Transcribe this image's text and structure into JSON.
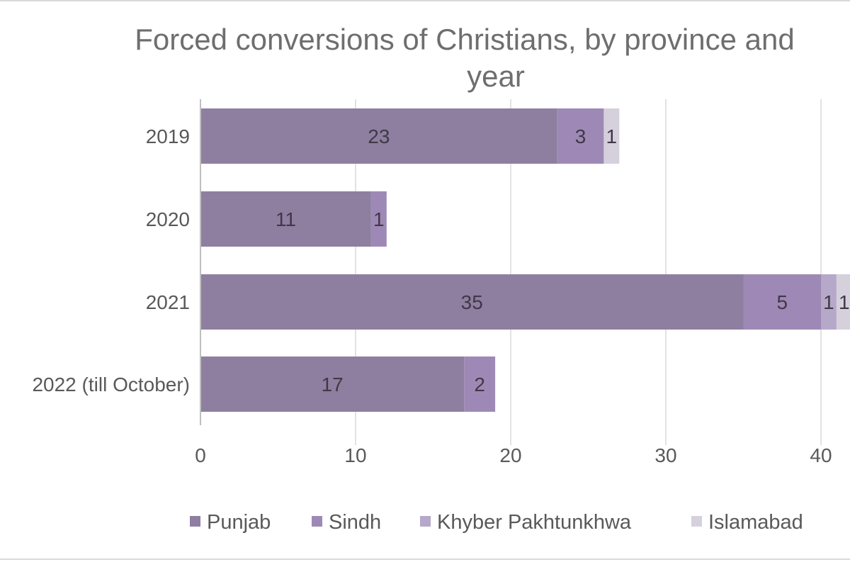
{
  "chart_data": {
    "type": "bar",
    "orientation": "horizontal",
    "stacked": true,
    "title": "Forced conversions of Christians, by province and year",
    "title_lines": [
      "Forced conversions of Christians, by province and",
      "year"
    ],
    "xlabel": "",
    "ylabel": "",
    "categories": [
      "2019",
      "2020",
      "2021",
      "2022 (till October)"
    ],
    "series": [
      {
        "name": "Punjab",
        "color": "#8e7fa0",
        "values": [
          23,
          11,
          35,
          17
        ]
      },
      {
        "name": "Sindh",
        "color": "#9e89b6",
        "values": [
          3,
          1,
          5,
          2
        ]
      },
      {
        "name": "Khyber Pakhtunkhwa",
        "color": "#b6a8c9",
        "values": [
          0,
          0,
          1,
          0
        ]
      },
      {
        "name": "Islamabad",
        "color": "#d5d0dc",
        "values": [
          1,
          0,
          1,
          0
        ]
      }
    ],
    "xlim": [
      0,
      40
    ],
    "x_ticks": [
      0,
      10,
      20,
      30,
      40
    ],
    "grid": true,
    "legend_position": "bottom"
  }
}
